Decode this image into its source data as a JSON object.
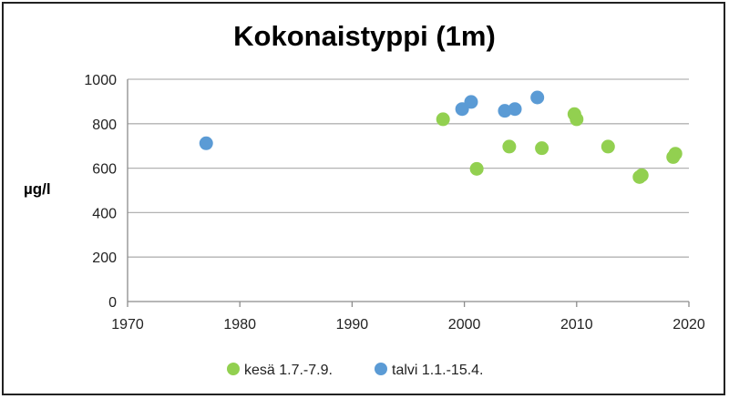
{
  "chart_data": {
    "type": "scatter",
    "title": "Kokonaistyppi (1m)",
    "xlabel": "",
    "ylabel": "µg/l",
    "xlim": [
      1970,
      2020
    ],
    "ylim": [
      0,
      1000
    ],
    "xticks": [
      1970,
      1980,
      1990,
      2000,
      2010,
      2020
    ],
    "yticks": [
      0,
      200,
      400,
      600,
      800,
      1000
    ],
    "grid": "horizontal",
    "legend_position": "bottom",
    "series": [
      {
        "name": "kesä 1.7.-7.9.",
        "color": "#92d050",
        "points": [
          {
            "x": 1998.1,
            "y": 820
          },
          {
            "x": 2001.1,
            "y": 597
          },
          {
            "x": 2004.0,
            "y": 697
          },
          {
            "x": 2006.9,
            "y": 690
          },
          {
            "x": 2009.8,
            "y": 843
          },
          {
            "x": 2010.0,
            "y": 820
          },
          {
            "x": 2012.8,
            "y": 697
          },
          {
            "x": 2015.6,
            "y": 560
          },
          {
            "x": 2015.8,
            "y": 568
          },
          {
            "x": 2018.6,
            "y": 650
          },
          {
            "x": 2018.8,
            "y": 665
          }
        ]
      },
      {
        "name": "talvi 1.1.-15.4.",
        "color": "#5b9bd5",
        "points": [
          {
            "x": 1977.0,
            "y": 712
          },
          {
            "x": 1999.8,
            "y": 866
          },
          {
            "x": 2000.6,
            "y": 898
          },
          {
            "x": 2003.6,
            "y": 858
          },
          {
            "x": 2004.5,
            "y": 866
          },
          {
            "x": 2006.5,
            "y": 918
          }
        ]
      }
    ]
  }
}
